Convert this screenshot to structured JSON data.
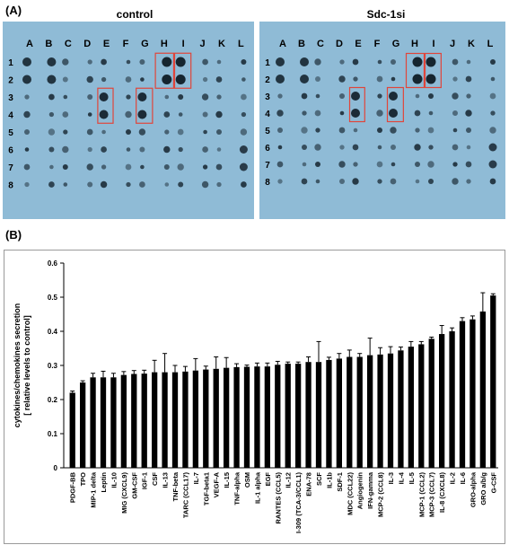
{
  "panel_a": {
    "label": "(A)",
    "membranes": [
      {
        "title": "control",
        "columns": [
          "A",
          "B",
          "C",
          "D",
          "E",
          "F",
          "G",
          "H",
          "I",
          "J",
          "K",
          "L"
        ],
        "rows": [
          "1",
          "2",
          "3",
          "4",
          "5",
          "6",
          "7",
          "8"
        ]
      },
      {
        "title": "Sdc-1si",
        "columns": [
          "A",
          "B",
          "C",
          "D",
          "E",
          "F",
          "G",
          "H",
          "I",
          "J",
          "K",
          "L"
        ],
        "rows": [
          "1",
          "2",
          "3",
          "4",
          "5",
          "6",
          "7",
          "8"
        ]
      }
    ],
    "membrane_color": "#8fbbd6",
    "highlight_color": "#e0453a"
  },
  "panel_b": {
    "label": "(B)"
  },
  "chart_data": {
    "type": "bar",
    "ylabel_line1": "cytokines/chemokines secretion",
    "ylabel_line2": "[ relative levels to control]",
    "ylim": [
      0,
      0.6
    ],
    "yticks": [
      "0",
      "0.1",
      "0.2",
      "0.3",
      "0.4",
      "0.5",
      "0.6"
    ],
    "grid": false,
    "bar_color": "#000000",
    "categories": [
      "PDGF-BB",
      "TPO",
      "MIP-1 delta",
      "Leptin",
      "IL-10",
      "MIG (CXCL9)",
      "GM-CSF",
      "IGF-1",
      "CSF",
      "IL-13",
      "TNF-beta",
      "TARC (CCL17)",
      "IL-7",
      "TGF-beta1",
      "VEGF-A",
      "IL-15",
      "TNF-alpha",
      "OSM",
      "IL-1 alpha",
      "EGF",
      "RANTES (CCL5)",
      "IL-12",
      "I-309 (TCA-3/CCL1)",
      "ENA-78",
      "SCF",
      "IL-1b",
      "SDF-1",
      "MDC (CCL22)",
      "Angiogenin",
      "IFN-gamma",
      "MCP-2 (CCL8)",
      "IL-3",
      "IL-4",
      "IL-5",
      "MCP-1 (CCL2)",
      "MCP-3 (CCL7)",
      "IL-8 (CXCL8)",
      "IL-2",
      "IL-6",
      "GRO-alpha",
      "GRO a/b/g",
      "G-CSF"
    ],
    "values": [
      0.22,
      0.25,
      0.265,
      0.265,
      0.265,
      0.272,
      0.275,
      0.276,
      0.28,
      0.28,
      0.28,
      0.282,
      0.285,
      0.288,
      0.29,
      0.293,
      0.295,
      0.296,
      0.297,
      0.297,
      0.302,
      0.305,
      0.305,
      0.31,
      0.31,
      0.316,
      0.32,
      0.325,
      0.325,
      0.33,
      0.332,
      0.335,
      0.344,
      0.355,
      0.362,
      0.378,
      0.392,
      0.4,
      0.43,
      0.435,
      0.458,
      0.505
    ],
    "errors": [
      0.005,
      0.005,
      0.012,
      0.018,
      0.012,
      0.01,
      0.01,
      0.01,
      0.035,
      0.055,
      0.02,
      0.015,
      0.035,
      0.01,
      0.035,
      0.03,
      0.01,
      0.005,
      0.01,
      0.01,
      0.01,
      0.005,
      0.005,
      0.015,
      0.06,
      0.008,
      0.015,
      0.02,
      0.01,
      0.05,
      0.02,
      0.02,
      0.01,
      0.015,
      0.008,
      0.005,
      0.025,
      0.01,
      0.01,
      0.01,
      0.055,
      0.005
    ]
  }
}
